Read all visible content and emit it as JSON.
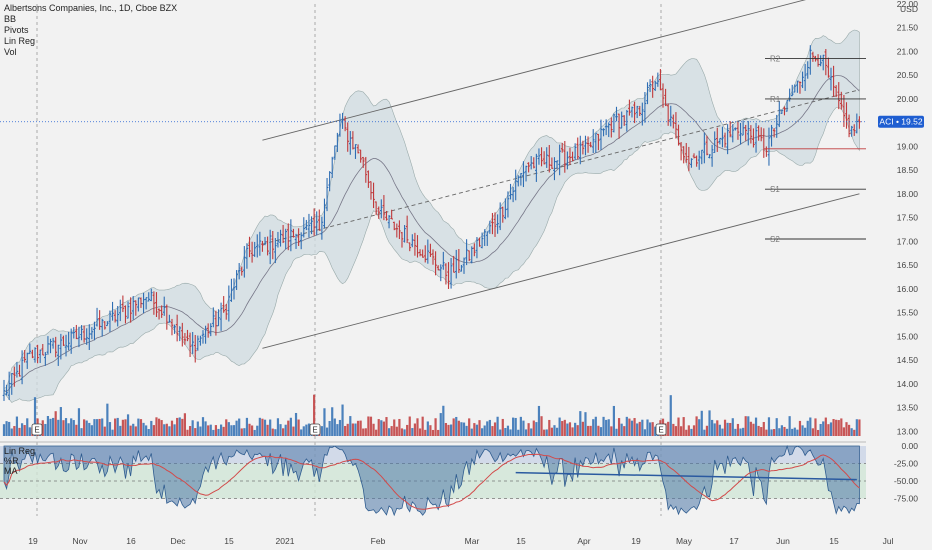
{
  "header": {
    "title": "Albertsons Companies, Inc., 1D, Cboe BZX",
    "studies": [
      "BB",
      "Pivots",
      "Lin Reg",
      "Vol"
    ]
  },
  "indicator_legend": [
    "Lin Reg",
    "%R",
    "MA"
  ],
  "price_axis": {
    "currency": "USD",
    "ticks": [
      "22.00",
      "21.50",
      "21.00",
      "20.50",
      "20.00",
      "19.50",
      "19.00",
      "18.50",
      "18.00",
      "17.50",
      "17.00",
      "16.50",
      "16.00",
      "15.50",
      "15.00",
      "14.50",
      "14.00",
      "13.50",
      "13.00"
    ],
    "last_symbol": "ACI",
    "last_price": "19.52"
  },
  "indicator_axis": {
    "ticks": [
      "-25.00",
      "-50.00",
      "-75.00"
    ],
    "top_tick": "0.00"
  },
  "time_axis": {
    "ticks": [
      "19",
      "Nov",
      "16",
      "Dec",
      "15",
      "2021",
      "Feb",
      "Mar",
      "15",
      "Apr",
      "19",
      "May",
      "17",
      "Jun",
      "15",
      "Jul"
    ]
  },
  "pivots": [
    {
      "label": "R2",
      "value": 20.85
    },
    {
      "label": "R1",
      "value": 20.0
    },
    {
      "label": "S1",
      "value": 18.1
    },
    {
      "label": "S2",
      "value": 17.05
    }
  ],
  "colors": {
    "up": "#2e6db3",
    "down": "#c0393b",
    "bb_fill": "#cfdbe0",
    "pivot": "#333333",
    "last_price_bg": "#1f5ed1",
    "wr_area": "#4f78a8",
    "ma_line": "#d24a4a"
  },
  "chart_data": {
    "type": "ohlc",
    "title": "Albertsons Companies, Inc., 1D, Cboe BZX",
    "ylim": [
      12.9,
      22.0
    ],
    "anchors": [
      [
        0,
        13.8
      ],
      [
        10,
        14.6
      ],
      [
        25,
        14.9
      ],
      [
        40,
        15.3
      ],
      [
        55,
        15.85
      ],
      [
        62,
        15.55
      ],
      [
        72,
        14.75
      ],
      [
        85,
        15.5
      ],
      [
        90,
        16.2
      ],
      [
        95,
        16.8
      ],
      [
        110,
        17.1
      ],
      [
        122,
        17.3
      ],
      [
        130,
        19.5
      ],
      [
        138,
        18.8
      ],
      [
        145,
        17.6
      ],
      [
        160,
        16.9
      ],
      [
        172,
        16.3
      ],
      [
        180,
        16.7
      ],
      [
        190,
        17.4
      ],
      [
        202,
        18.6
      ],
      [
        212,
        18.7
      ],
      [
        225,
        18.9
      ],
      [
        235,
        19.5
      ],
      [
        245,
        19.7
      ],
      [
        252,
        20.4
      ],
      [
        258,
        19.5
      ],
      [
        265,
        18.7
      ],
      [
        275,
        19.05
      ],
      [
        285,
        19.4
      ],
      [
        295,
        19.0
      ],
      [
        300,
        19.6
      ],
      [
        307,
        20.3
      ],
      [
        312,
        20.9
      ],
      [
        316,
        20.9
      ],
      [
        320,
        20.3
      ],
      [
        324,
        19.7
      ],
      [
        328,
        19.3
      ],
      [
        331,
        19.55
      ]
    ],
    "volume_pattern": "higher on Oct, Jan and mid-April spikes",
    "last_close": 19.52,
    "pivots": {
      "R2": 20.85,
      "R1": 20.0,
      "S1": 18.1,
      "S2": 17.05
    },
    "indicator": {
      "name": "%R",
      "ylim": [
        -100,
        0
      ],
      "levels": [
        -25,
        -50,
        -75
      ]
    }
  }
}
